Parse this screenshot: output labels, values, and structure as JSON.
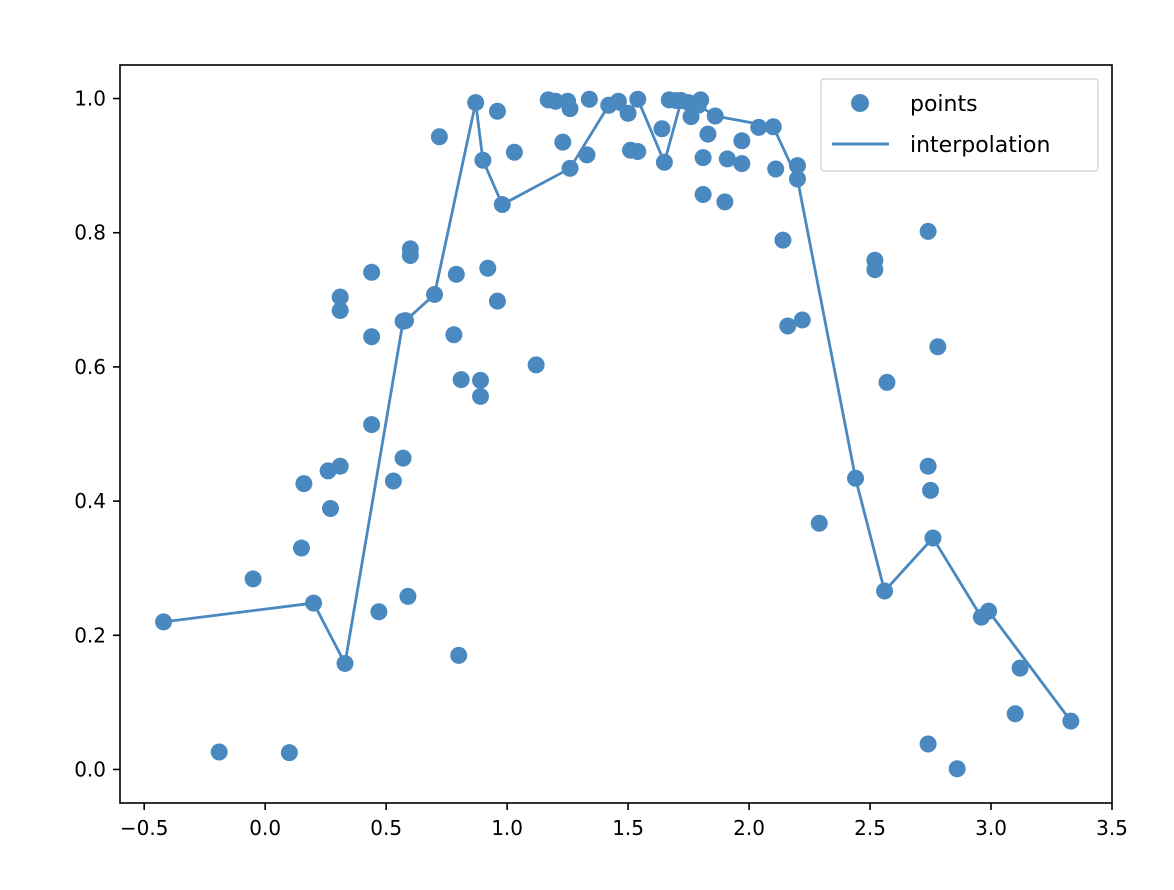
{
  "chart_data": {
    "type": "scatter",
    "title": "",
    "xlabel": "",
    "ylabel": "",
    "xlim": [
      -0.6,
      3.5
    ],
    "ylim": [
      -0.05,
      1.05
    ],
    "xticks": [
      -0.5,
      0.0,
      0.5,
      1.0,
      1.5,
      2.0,
      2.5,
      3.0,
      3.5
    ],
    "xtick_labels": [
      "−0.5",
      "0.0",
      "0.5",
      "1.0",
      "1.5",
      "2.0",
      "2.5",
      "3.0",
      "3.5"
    ],
    "yticks": [
      0.0,
      0.2,
      0.4,
      0.6,
      0.8,
      1.0
    ],
    "ytick_labels": [
      "0.0",
      "0.2",
      "0.4",
      "0.6",
      "0.8",
      "1.0"
    ],
    "grid": false,
    "legend_position": "top-right",
    "color": "#4a89bf",
    "series": [
      {
        "name": "points",
        "kind": "scatter",
        "points": [
          [
            -0.42,
            0.22
          ],
          [
            -0.19,
            0.026
          ],
          [
            -0.05,
            0.284
          ],
          [
            0.1,
            0.025
          ],
          [
            0.15,
            0.33
          ],
          [
            0.16,
            0.426
          ],
          [
            0.2,
            0.248
          ],
          [
            0.26,
            0.445
          ],
          [
            0.27,
            0.389
          ],
          [
            0.31,
            0.452
          ],
          [
            0.31,
            0.704
          ],
          [
            0.31,
            0.684
          ],
          [
            0.33,
            0.158
          ],
          [
            0.44,
            0.741
          ],
          [
            0.44,
            0.645
          ],
          [
            0.44,
            0.514
          ],
          [
            0.47,
            0.235
          ],
          [
            0.53,
            0.43
          ],
          [
            0.57,
            0.464
          ],
          [
            0.57,
            0.668
          ],
          [
            0.58,
            0.669
          ],
          [
            0.59,
            0.258
          ],
          [
            0.6,
            0.776
          ],
          [
            0.6,
            0.766
          ],
          [
            0.7,
            0.708
          ],
          [
            0.72,
            0.943
          ],
          [
            0.78,
            0.648
          ],
          [
            0.79,
            0.738
          ],
          [
            0.8,
            0.17
          ],
          [
            0.81,
            0.581
          ],
          [
            0.87,
            0.994
          ],
          [
            0.89,
            0.556
          ],
          [
            0.89,
            0.58
          ],
          [
            0.9,
            0.908
          ],
          [
            0.92,
            0.747
          ],
          [
            0.96,
            0.981
          ],
          [
            0.96,
            0.698
          ],
          [
            0.98,
            0.842
          ],
          [
            1.03,
            0.92
          ],
          [
            1.12,
            0.603
          ],
          [
            1.17,
            0.998
          ],
          [
            1.2,
            0.996
          ],
          [
            1.23,
            0.935
          ],
          [
            1.25,
            0.996
          ],
          [
            1.26,
            0.896
          ],
          [
            1.26,
            0.985
          ],
          [
            1.33,
            0.916
          ],
          [
            1.34,
            0.999
          ],
          [
            1.42,
            0.99
          ],
          [
            1.46,
            0.996
          ],
          [
            1.5,
            0.978
          ],
          [
            1.51,
            0.923
          ],
          [
            1.54,
            0.999
          ],
          [
            1.54,
            0.921
          ],
          [
            1.64,
            0.955
          ],
          [
            1.65,
            0.905
          ],
          [
            1.67,
            0.998
          ],
          [
            1.7,
            0.997
          ],
          [
            1.72,
            0.997
          ],
          [
            1.75,
            0.994
          ],
          [
            1.76,
            0.973
          ],
          [
            1.79,
            0.99
          ],
          [
            1.8,
            0.998
          ],
          [
            1.81,
            0.912
          ],
          [
            1.81,
            0.857
          ],
          [
            1.83,
            0.947
          ],
          [
            1.86,
            0.974
          ],
          [
            1.9,
            0.846
          ],
          [
            1.91,
            0.91
          ],
          [
            1.97,
            0.937
          ],
          [
            1.97,
            0.903
          ],
          [
            2.04,
            0.957
          ],
          [
            2.1,
            0.958
          ],
          [
            2.11,
            0.895
          ],
          [
            2.14,
            0.789
          ],
          [
            2.16,
            0.661
          ],
          [
            2.2,
            0.9
          ],
          [
            2.2,
            0.88
          ],
          [
            2.22,
            0.67
          ],
          [
            2.29,
            0.367
          ],
          [
            2.44,
            0.434
          ],
          [
            2.52,
            0.759
          ],
          [
            2.52,
            0.745
          ],
          [
            2.56,
            0.266
          ],
          [
            2.57,
            0.577
          ],
          [
            2.74,
            0.802
          ],
          [
            2.74,
            0.452
          ],
          [
            2.74,
            0.038
          ],
          [
            2.75,
            0.416
          ],
          [
            2.76,
            0.345
          ],
          [
            2.78,
            0.63
          ],
          [
            2.86,
            0.001
          ],
          [
            2.96,
            0.227
          ],
          [
            2.99,
            0.236
          ],
          [
            3.1,
            0.083
          ],
          [
            3.12,
            0.151
          ],
          [
            3.33,
            0.072
          ]
        ]
      },
      {
        "name": "interpolation",
        "kind": "line",
        "points": [
          [
            -0.42,
            0.22
          ],
          [
            0.2,
            0.248
          ],
          [
            0.33,
            0.158
          ],
          [
            0.57,
            0.668
          ],
          [
            0.58,
            0.669
          ],
          [
            0.7,
            0.708
          ],
          [
            0.87,
            0.994
          ],
          [
            0.9,
            0.908
          ],
          [
            0.98,
            0.842
          ],
          [
            1.26,
            0.896
          ],
          [
            1.42,
            0.99
          ],
          [
            1.5,
            0.978
          ],
          [
            1.54,
            0.999
          ],
          [
            1.65,
            0.905
          ],
          [
            1.72,
            0.997
          ],
          [
            1.76,
            0.973
          ],
          [
            1.79,
            0.99
          ],
          [
            1.86,
            0.974
          ],
          [
            2.1,
            0.958
          ],
          [
            2.2,
            0.88
          ],
          [
            2.44,
            0.434
          ],
          [
            2.56,
            0.266
          ],
          [
            2.76,
            0.345
          ],
          [
            2.96,
            0.227
          ],
          [
            2.99,
            0.236
          ],
          [
            3.33,
            0.072
          ]
        ]
      }
    ]
  }
}
